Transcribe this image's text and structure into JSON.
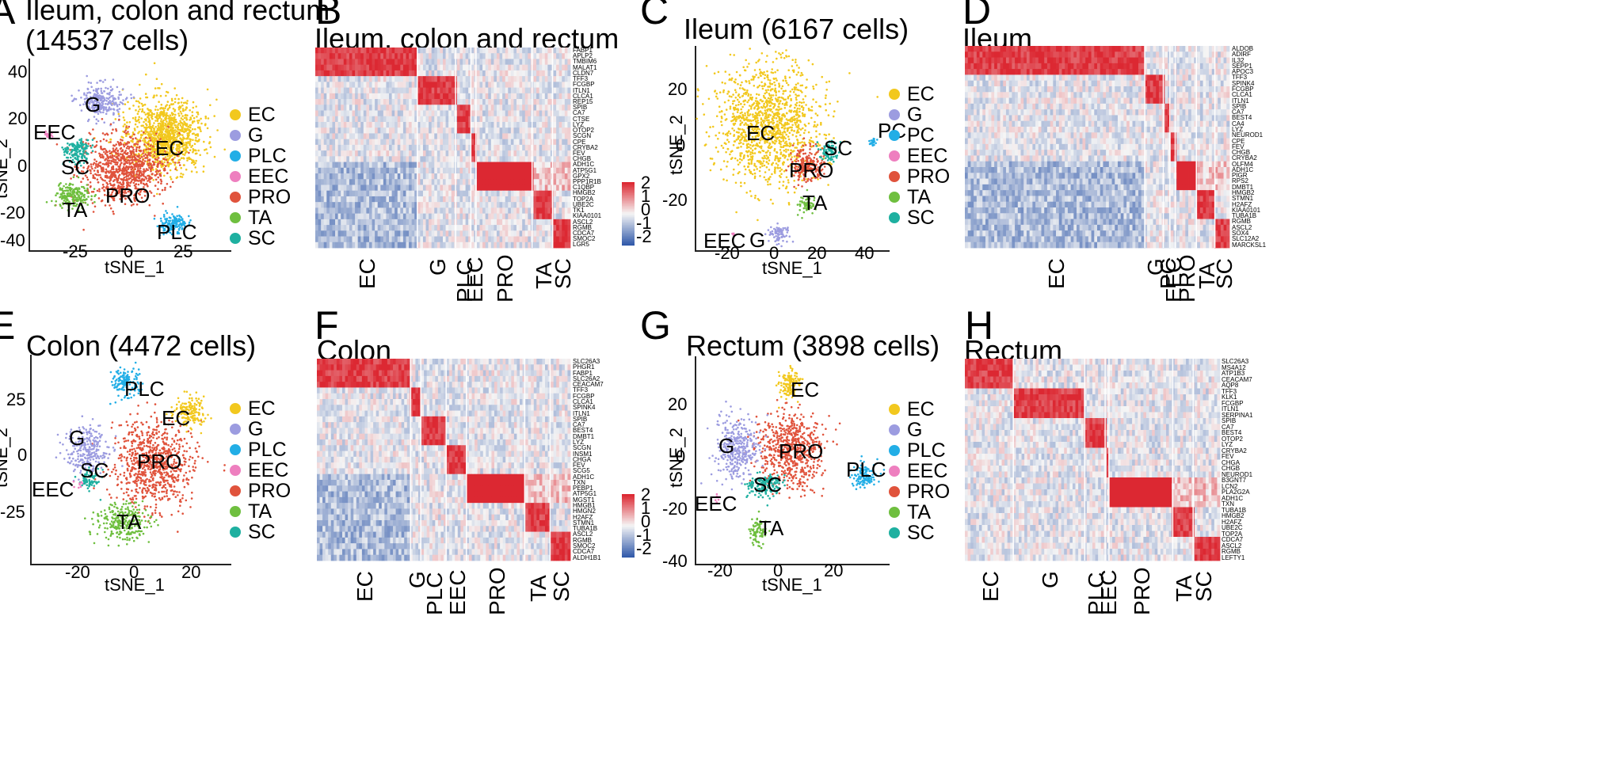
{
  "figure": {
    "panels": [
      {
        "id": "A",
        "label": "A",
        "title": "Ileum, colon and rectum\n(14537 cells)",
        "kind": "tsne",
        "xlabel": "tSNE_1",
        "ylabel": "tSNE_2",
        "xticks": [
          "-25",
          "0",
          "25"
        ],
        "yticks": [
          "40",
          "20",
          "0",
          "-20",
          "-40"
        ],
        "legend": [
          "EC",
          "G",
          "PLC",
          "EEC",
          "PRO",
          "TA",
          "SC"
        ],
        "cluster_labels": [
          "EEC",
          "G",
          "EC",
          "SC",
          "PRO",
          "TA",
          "PLC"
        ]
      },
      {
        "id": "B",
        "label": "B",
        "title": "Ileum, colon and rectum",
        "kind": "heatmap",
        "genes": [
          "FABP1",
          "APLP2",
          "TMBIM6",
          "MALAT1",
          "CLDN7",
          "TFF3",
          "FCGBP",
          "ITLN1",
          "CLCA1",
          "REP15",
          "SPIB",
          "CA7",
          "CTSE",
          "LYZ",
          "OTOP2",
          "SCGN",
          "CPE",
          "CRYBA2",
          "FEV",
          "CHGB",
          "ADH1C",
          "ATP5G1",
          "GPX2",
          "PPP1R1B",
          "C1QBP",
          "HMGB2",
          "TOP2A",
          "UBE2C",
          "TK1",
          "KIAA0101",
          "ASCL2",
          "RGMB",
          "CDCA7",
          "SMOC2",
          "LGR5"
        ],
        "groups": [
          "EC",
          "G",
          "PLC",
          "EEC",
          "PRO",
          "TA",
          "SC"
        ],
        "colorbar": [
          "2",
          "1",
          "0",
          "-1",
          "-2"
        ]
      },
      {
        "id": "C",
        "label": "C",
        "title": "Ileum (6167 cells)",
        "kind": "tsne",
        "xlabel": "tSNE_1",
        "ylabel": "tSNE_2",
        "xticks": [
          "-20",
          "0",
          "20",
          "40"
        ],
        "yticks": [
          "20",
          "0",
          "-20"
        ],
        "legend": [
          "EC",
          "G",
          "PC",
          "EEC",
          "PRO",
          "TA",
          "SC"
        ],
        "cluster_labels": [
          "EC",
          "PC",
          "SC",
          "PRO",
          "TA",
          "EEC",
          "G"
        ]
      },
      {
        "id": "D",
        "label": "D",
        "title": "Ileum",
        "kind": "heatmap",
        "genes": [
          "ALDOB",
          "ADIRF",
          "IL32",
          "SEPP1",
          "APOC3",
          "TFF3",
          "SPINK4",
          "FCGBP",
          "CLCA1",
          "ITLN1",
          "SPIB",
          "CA7",
          "BEST4",
          "CA4",
          "LYZ",
          "NEUROD1",
          "CPE",
          "FEV",
          "CHGB",
          "CRYBA2",
          "OLFM4",
          "ADH1C",
          "PIGR",
          "RPS2",
          "DMBT1",
          "HMGB2",
          "STMN1",
          "H2AFZ",
          "KIAA0101",
          "TUBA1B",
          "RGMB",
          "ASCL2",
          "SOX4",
          "SLC12A2",
          "MARCKSL1"
        ],
        "groups": [
          "EC",
          "G",
          "PC",
          "EEC",
          "PRO",
          "TA",
          "SC"
        ],
        "colorbar": []
      },
      {
        "id": "E",
        "label": "E",
        "title": "Colon (4472 cells)",
        "kind": "tsne",
        "xlabel": "tSNE_1",
        "ylabel": "tSNE_2",
        "xticks": [
          "-20",
          "0",
          "20"
        ],
        "yticks": [
          "25",
          "0",
          "-25"
        ],
        "legend": [
          "EC",
          "G",
          "PLC",
          "EEC",
          "PRO",
          "TA",
          "SC"
        ],
        "cluster_labels": [
          "PLC",
          "EC",
          "G",
          "PRO",
          "SC",
          "EEC",
          "TA"
        ]
      },
      {
        "id": "F",
        "label": "F",
        "title": "Colon",
        "kind": "heatmap",
        "genes": [
          "SLC26A3",
          "PHGR1",
          "FABP1",
          "SLC26A2",
          "CEACAM7",
          "TFF3",
          "FCGBP",
          "CLCA1",
          "SPINK4",
          "ITLN1",
          "SPIB",
          "CA7",
          "BEST4",
          "DMBT1",
          "LYZ",
          "SCGN",
          "INSM1",
          "CHGA",
          "FEV",
          "SCG5",
          "ADH1C",
          "TXN",
          "PEBP1",
          "ATP5G1",
          "MGST1",
          "HMGB1",
          "HMGN2",
          "H2AFZ",
          "STMN1",
          "TUBA1B",
          "ASCL2",
          "RGMB",
          "SMOC2",
          "CDCA7",
          "ALDH1B1"
        ],
        "groups": [
          "EC",
          "G",
          "PLC",
          "EEC",
          "PRO",
          "TA",
          "SC"
        ],
        "colorbar": [
          "2",
          "1",
          "0",
          "-1",
          "-2"
        ]
      },
      {
        "id": "G",
        "label": "G",
        "title": "Rectum (3898 cells)",
        "kind": "tsne",
        "xlabel": "tSNE_1",
        "ylabel": "tSNE_2",
        "xticks": [
          "-20",
          "0",
          "20"
        ],
        "yticks": [
          "20",
          "0",
          "-20",
          "-40"
        ],
        "legend": [
          "EC",
          "G",
          "PLC",
          "EEC",
          "PRO",
          "TA",
          "SC"
        ],
        "cluster_labels": [
          "EC",
          "G",
          "PRO",
          "PLC",
          "SC",
          "EEC",
          "TA"
        ]
      },
      {
        "id": "H",
        "label": "H",
        "title": "Rectum",
        "kind": "heatmap",
        "genes": [
          "SLC26A3",
          "MS4A12",
          "ATP1B3",
          "CEACAM7",
          "AQP8",
          "TFF3",
          "KLK1",
          "FCGBP",
          "ITLN1",
          "SERPINA1",
          "SPIB",
          "CA7",
          "BEST4",
          "OTOP2",
          "LYZ",
          "CRYBA2",
          "FEV",
          "CHGA",
          "CHGB",
          "NEUROD1",
          "B3GNT7",
          "LCN2",
          "PLA2G2A",
          "ADH1C",
          "TXN",
          "TUBA1B",
          "HMGB2",
          "H2AFZ",
          "UBE2C",
          "TOP2A",
          "CDCA7",
          "ASCL2",
          "RGMB",
          "LEFTY1"
        ],
        "groups": [
          "EC",
          "G",
          "PLC",
          "EEC",
          "PRO",
          "TA",
          "SC"
        ],
        "colorbar": []
      }
    ],
    "colors": {
      "EC": "#f2c81e",
      "G": "#9c9ce0",
      "PLC": "#22aee6",
      "PC": "#22aee6",
      "EEC": "#ee7fbf",
      "PRO": "#e0533c",
      "TA": "#6fbf3f",
      "SC": "#1eb0a0"
    }
  }
}
